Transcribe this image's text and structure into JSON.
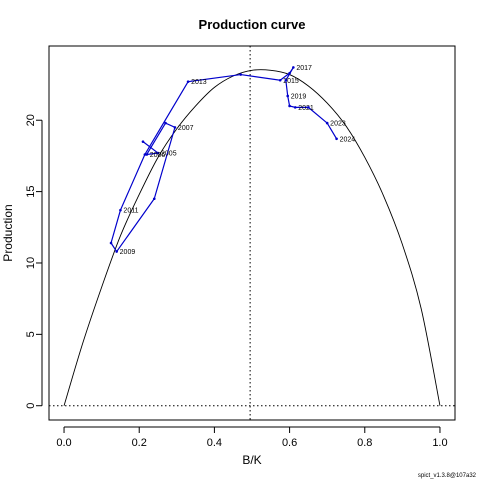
{
  "chart_data": {
    "type": "line",
    "title": "Production curve",
    "xlabel": "B/K",
    "ylabel": "Production",
    "xlim": [
      -0.04,
      1.04
    ],
    "ylim": [
      -1.0,
      25.2
    ],
    "x_ticks": [
      0.0,
      0.2,
      0.4,
      0.6,
      0.8,
      1.0
    ],
    "x_tick_labels": [
      "0.0",
      "0.2",
      "0.4",
      "0.6",
      "0.8",
      "1.0"
    ],
    "y_ticks": [
      0,
      5,
      10,
      15,
      20
    ],
    "y_tick_labels": [
      "0",
      "5",
      "10",
      "15",
      "20"
    ],
    "grid": false,
    "curve": {
      "name": "",
      "color": "#000000",
      "x": [
        0.0,
        0.05,
        0.1,
        0.15,
        0.2,
        0.25,
        0.3,
        0.35,
        0.4,
        0.45,
        0.5,
        0.55,
        0.6,
        0.65,
        0.7,
        0.75,
        0.8,
        0.85,
        0.9,
        0.95,
        1.0
      ],
      "y": [
        0.0,
        4.4,
        8.3,
        11.9,
        14.8,
        17.4,
        19.4,
        21.0,
        22.3,
        23.1,
        23.5,
        23.5,
        23.2,
        22.4,
        21.2,
        19.6,
        17.4,
        14.7,
        11.3,
        6.8,
        0.0
      ]
    },
    "reference_lines": {
      "vertical_x": 0.495,
      "horizontal_y": 0,
      "style": "dotted",
      "color": "#000000"
    },
    "series": [
      {
        "name": "",
        "color": "#0000cc",
        "points": [
          {
            "x": 0.21,
            "y": 18.5,
            "label": ""
          },
          {
            "x": 0.25,
            "y": 17.7,
            "label": "2005"
          },
          {
            "x": 0.22,
            "y": 17.6,
            "label": "2006"
          },
          {
            "x": 0.27,
            "y": 19.8,
            "label": ""
          },
          {
            "x": 0.295,
            "y": 19.5,
            "label": "2007"
          },
          {
            "x": 0.24,
            "y": 14.5,
            "label": ""
          },
          {
            "x": 0.14,
            "y": 10.8,
            "label": "2009"
          },
          {
            "x": 0.125,
            "y": 11.4,
            "label": ""
          },
          {
            "x": 0.15,
            "y": 13.7,
            "label": "2011"
          },
          {
            "x": 0.215,
            "y": 17.6,
            "label": ""
          },
          {
            "x": 0.33,
            "y": 22.7,
            "label": "2013"
          },
          {
            "x": 0.47,
            "y": 23.2,
            "label": ""
          },
          {
            "x": 0.575,
            "y": 22.8,
            "label": "2015"
          },
          {
            "x": 0.6,
            "y": 23.3,
            "label": ""
          },
          {
            "x": 0.61,
            "y": 23.7,
            "label": "2017"
          },
          {
            "x": 0.59,
            "y": 22.8,
            "label": ""
          },
          {
            "x": 0.595,
            "y": 21.7,
            "label": "2019"
          },
          {
            "x": 0.6,
            "y": 21.0,
            "label": ""
          },
          {
            "x": 0.615,
            "y": 20.9,
            "label": "2021"
          },
          {
            "x": 0.65,
            "y": 20.9,
            "label": ""
          },
          {
            "x": 0.7,
            "y": 19.8,
            "label": "2023"
          },
          {
            "x": 0.725,
            "y": 18.7,
            "label": "2024"
          }
        ]
      }
    ]
  },
  "footer": "spict_v1.3.8@107a32"
}
